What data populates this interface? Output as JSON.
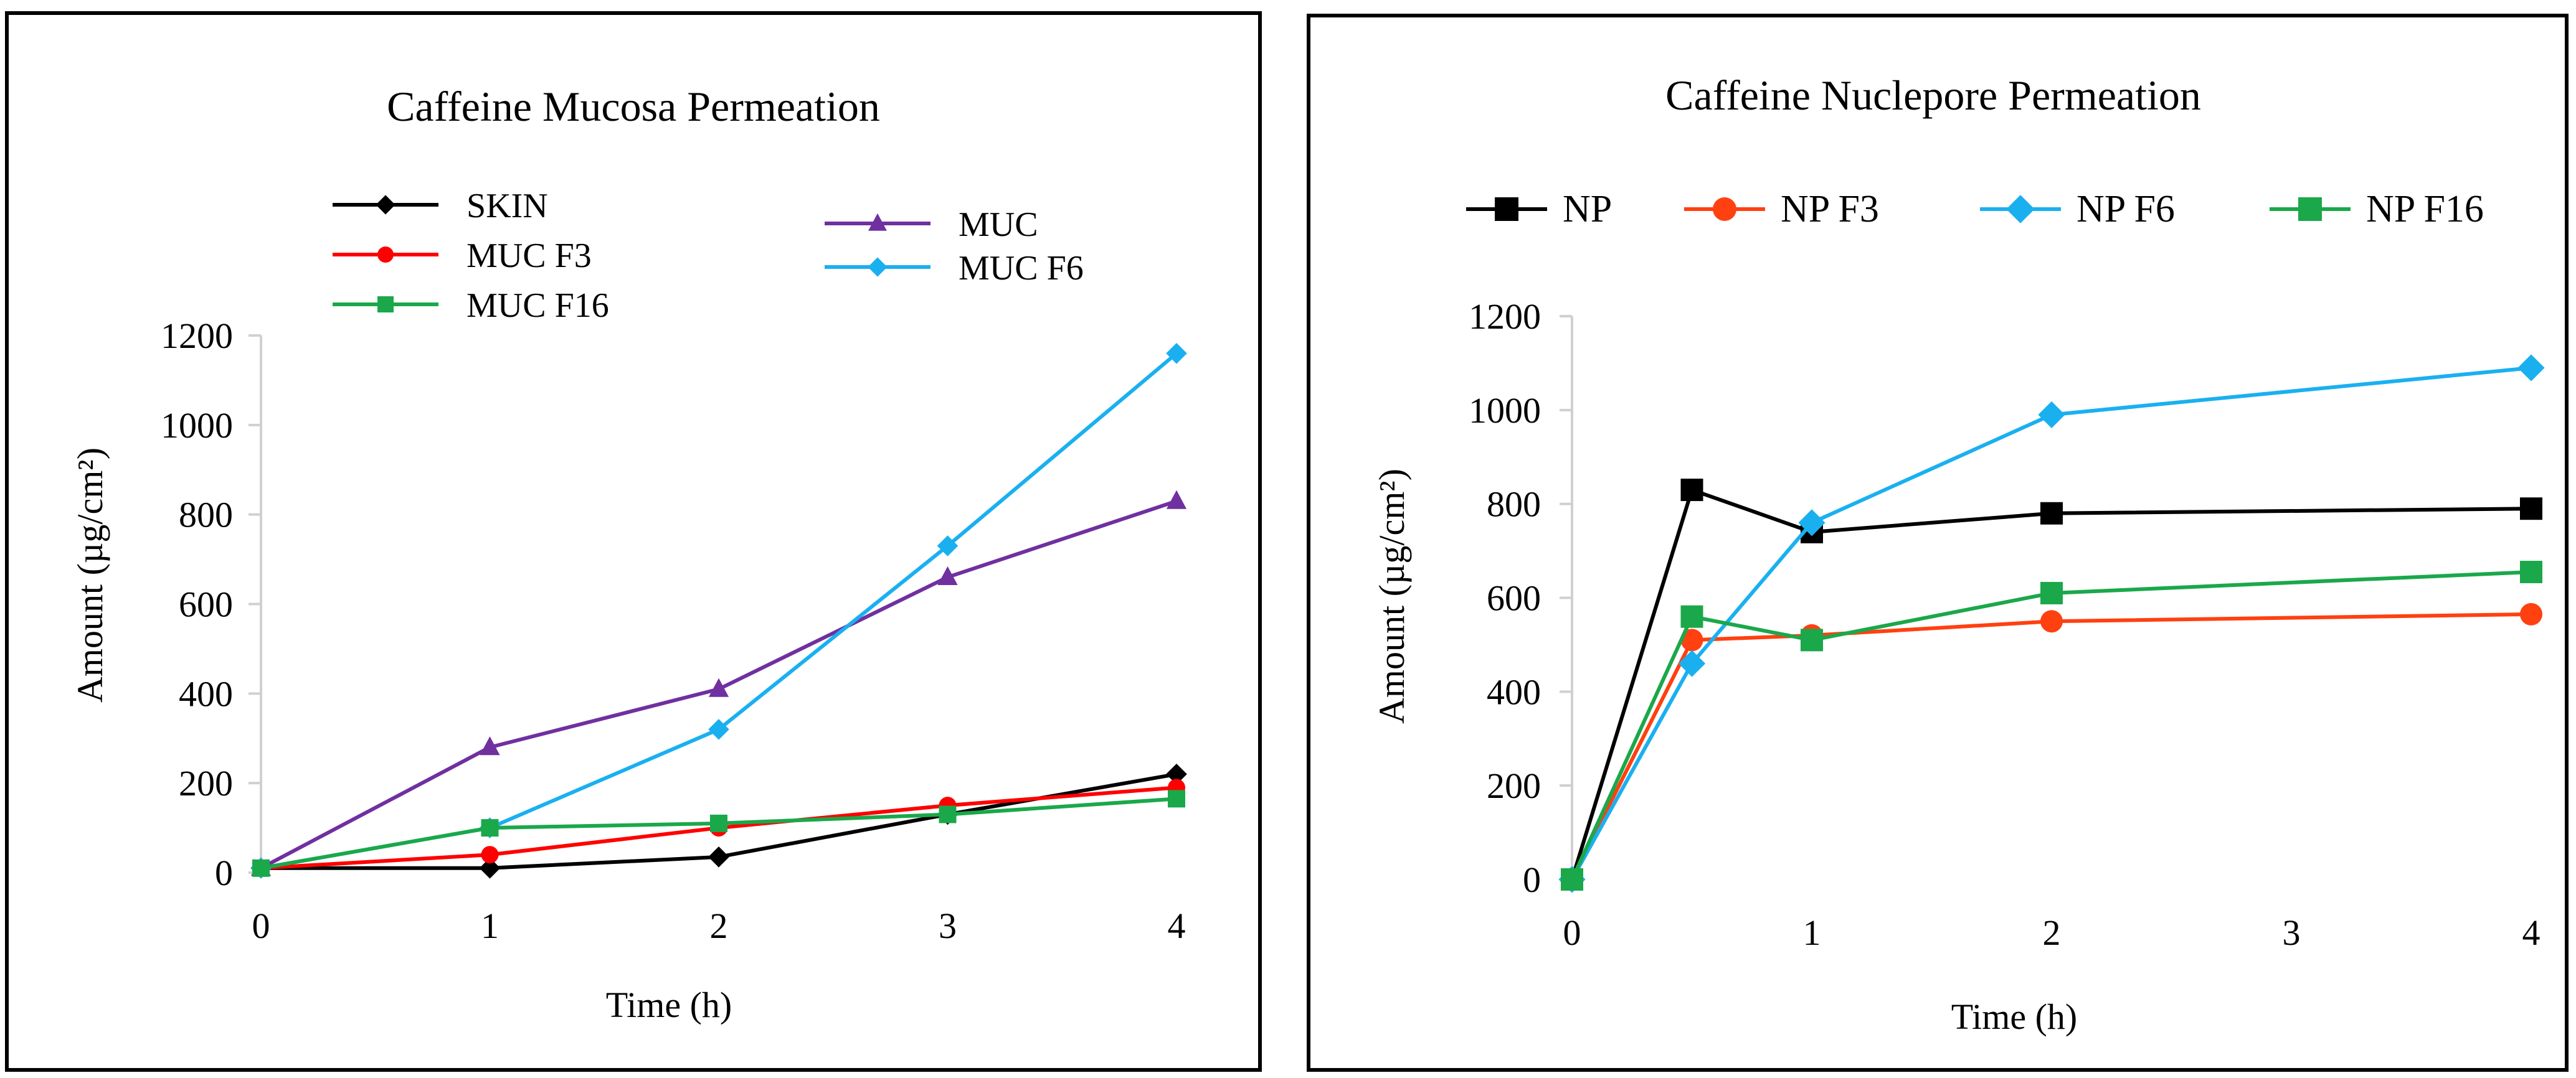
{
  "chart_data": [
    {
      "type": "line",
      "title": "Caffeine Mucosa Permeation",
      "xlabel": "Time (h)",
      "ylabel": "Amount (µg/cm²)",
      "x_ticks": [
        "0",
        "1",
        "2",
        "3",
        "4"
      ],
      "y_ticks": [
        "0",
        "200",
        "400",
        "600",
        "800",
        "1000",
        "1200"
      ],
      "xlim": [
        0,
        4
      ],
      "ylim": [
        0,
        1200
      ],
      "grid": false,
      "legend_position": "top",
      "series": [
        {
          "name": "SKIN",
          "color": "#000000",
          "marker": "diamond",
          "x": [
            0,
            1,
            2,
            3,
            4
          ],
          "y": [
            10,
            10,
            35,
            130,
            220
          ]
        },
        {
          "name": "MUC",
          "color": "#7030a0",
          "marker": "triangle",
          "x": [
            0,
            1,
            2,
            3,
            4
          ],
          "y": [
            10,
            280,
            410,
            660,
            830
          ]
        },
        {
          "name": "MUC F3",
          "color": "#ff0000",
          "marker": "circle",
          "x": [
            0,
            1,
            2,
            3,
            4
          ],
          "y": [
            10,
            40,
            100,
            150,
            190
          ]
        },
        {
          "name": "MUC F6",
          "color": "#1ab0f0",
          "marker": "diamond",
          "x": [
            0,
            1,
            2,
            3,
            4
          ],
          "y": [
            10,
            100,
            320,
            730,
            1160
          ]
        },
        {
          "name": "MUC F16",
          "color": "#1aa84a",
          "marker": "square",
          "x": [
            0,
            1,
            2,
            3,
            4
          ],
          "y": [
            10,
            100,
            110,
            130,
            165
          ]
        }
      ]
    },
    {
      "type": "line",
      "title": "Caffeine Nuclepore Permeation",
      "xlabel": "Time (h)",
      "ylabel": "Amount (µg/cm²)",
      "x_ticks": [
        "0",
        "1",
        "2",
        "3",
        "4"
      ],
      "y_ticks": [
        "0",
        "200",
        "400",
        "600",
        "800",
        "1000",
        "1200"
      ],
      "xlim": [
        0,
        4
      ],
      "ylim": [
        0,
        1200
      ],
      "grid": false,
      "legend_position": "top",
      "series": [
        {
          "name": "NP",
          "color": "#000000",
          "marker": "square",
          "x": [
            0,
            0.5,
            1,
            2,
            4
          ],
          "y": [
            0,
            830,
            740,
            780,
            790
          ]
        },
        {
          "name": "NP F3",
          "color": "#ff4010",
          "marker": "circle",
          "x": [
            0,
            0.5,
            1,
            2,
            4
          ],
          "y": [
            0,
            510,
            520,
            550,
            565
          ]
        },
        {
          "name": "NP F6",
          "color": "#1ab0f0",
          "marker": "diamond",
          "x": [
            0,
            0.5,
            1,
            2,
            4
          ],
          "y": [
            0,
            460,
            760,
            990,
            1090
          ]
        },
        {
          "name": "NP F16",
          "color": "#1aa84a",
          "marker": "square",
          "x": [
            0,
            0.5,
            1,
            2,
            4
          ],
          "y": [
            0,
            560,
            510,
            610,
            655
          ]
        }
      ]
    }
  ]
}
